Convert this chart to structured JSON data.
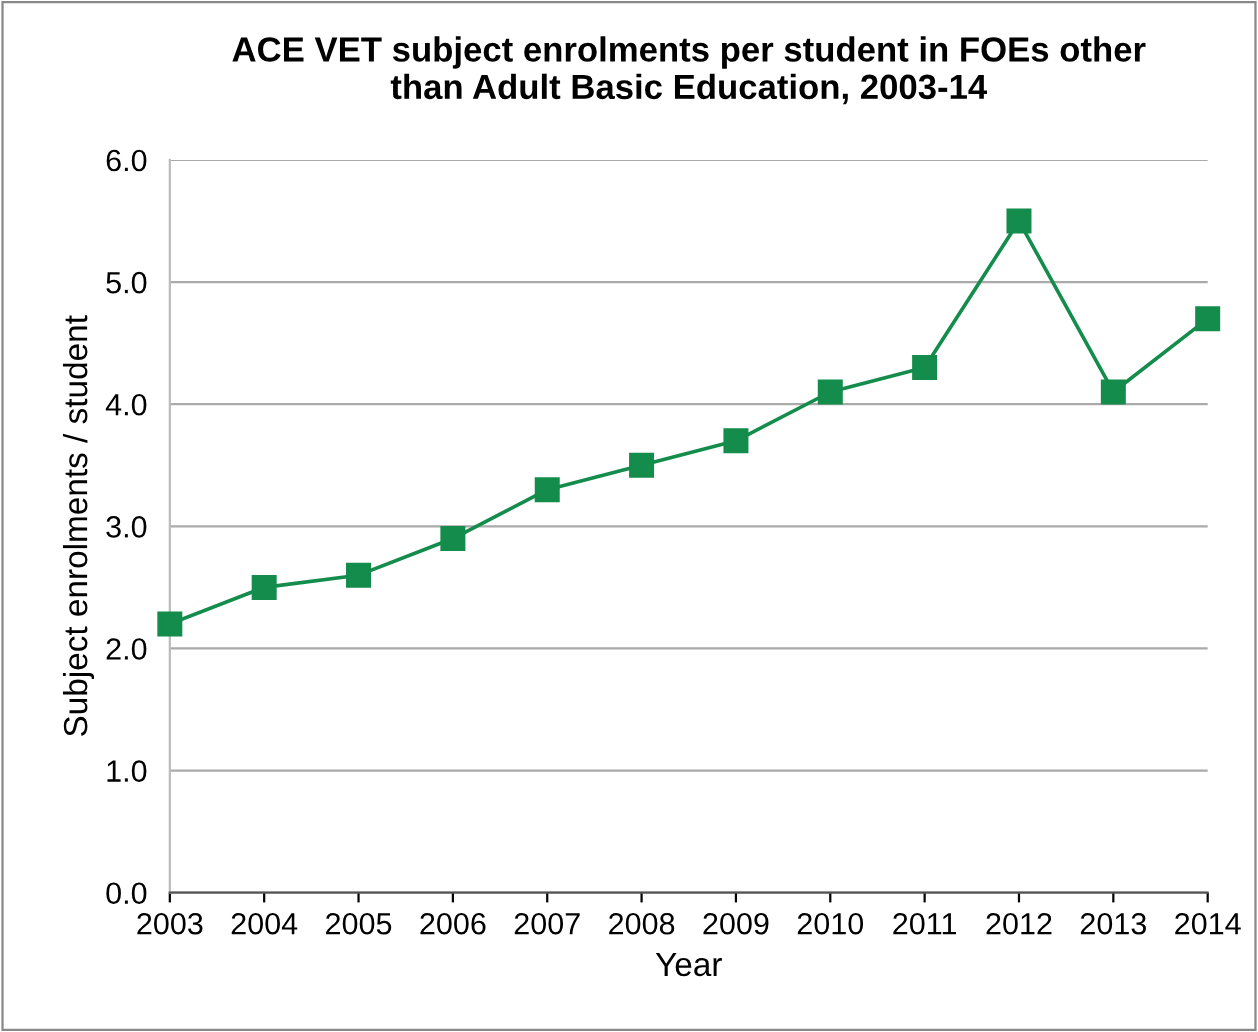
{
  "chart_data": {
    "type": "line",
    "title": "ACE VET subject enrolments per student in FOEs other\nthan Adult Basic Education, 2003-14",
    "xlabel": "Year",
    "ylabel": "Subject enrolments / student",
    "x": [
      2003,
      2004,
      2005,
      2006,
      2007,
      2008,
      2009,
      2010,
      2011,
      2012,
      2013,
      2014
    ],
    "series": [
      {
        "color": "#138c4c",
        "values": [
          2.2,
          2.5,
          2.6,
          2.9,
          3.3,
          3.5,
          3.7,
          4.1,
          4.3,
          5.5,
          4.1,
          4.7
        ]
      }
    ],
    "xlim": [
      2003,
      2014
    ],
    "xticks": [
      2003,
      2004,
      2005,
      2006,
      2007,
      2008,
      2009,
      2010,
      2011,
      2012,
      2013,
      2014
    ],
    "ylim": [
      0,
      6
    ],
    "yticks": [
      {
        "value": 0,
        "label": "0.0"
      },
      {
        "value": 1,
        "label": "1.0"
      },
      {
        "value": 2,
        "label": "2.0"
      },
      {
        "value": 3,
        "label": "3.0"
      },
      {
        "value": 4,
        "label": "4.0"
      },
      {
        "value": 5,
        "label": "5.0"
      },
      {
        "value": 6,
        "label": "6.0"
      }
    ],
    "grid": "y",
    "marker": "square",
    "line_style": "solid",
    "legend": false
  }
}
